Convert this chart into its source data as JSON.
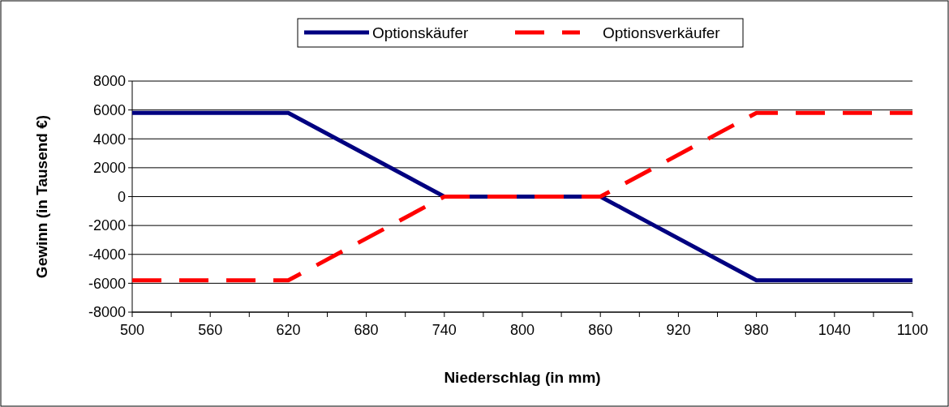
{
  "chart_data": {
    "type": "line",
    "xlabel": "Niederschlag (in mm)",
    "ylabel": "Gewinn (in Tausend €)",
    "x": [
      500,
      620,
      740,
      860,
      980,
      1100
    ],
    "series": [
      {
        "name": "Optionskäufer",
        "color": "#000080",
        "line_style": "solid",
        "values": [
          5800,
          5800,
          0,
          0,
          -5800,
          -5800
        ]
      },
      {
        "name": "Optionsverkäufer",
        "color": "#ff0000",
        "line_style": "dashed",
        "values": [
          -5800,
          -5800,
          0,
          0,
          5800,
          5800
        ]
      }
    ],
    "xlim": [
      500,
      1100
    ],
    "xticks": [
      500,
      {
        "value": 530,
        "label": null
      },
      560,
      {
        "value": 590,
        "label": null
      },
      620,
      {
        "value": 650,
        "label": null
      },
      680,
      {
        "value": 710,
        "label": null
      },
      740,
      {
        "value": 770,
        "label": null
      },
      800,
      {
        "value": 830,
        "label": null
      },
      860,
      {
        "value": 890,
        "label": null
      },
      920,
      {
        "value": 950,
        "label": null
      },
      980,
      {
        "value": 1010,
        "label": null
      },
      1040,
      {
        "value": 1070,
        "label": null
      },
      1100
    ],
    "ylim": [
      -8000,
      8000
    ],
    "yticks": [
      -8000,
      -6000,
      -4000,
      -2000,
      0,
      2000,
      4000,
      6000,
      8000
    ],
    "grid": "y",
    "legend": "top",
    "marker": "none"
  }
}
